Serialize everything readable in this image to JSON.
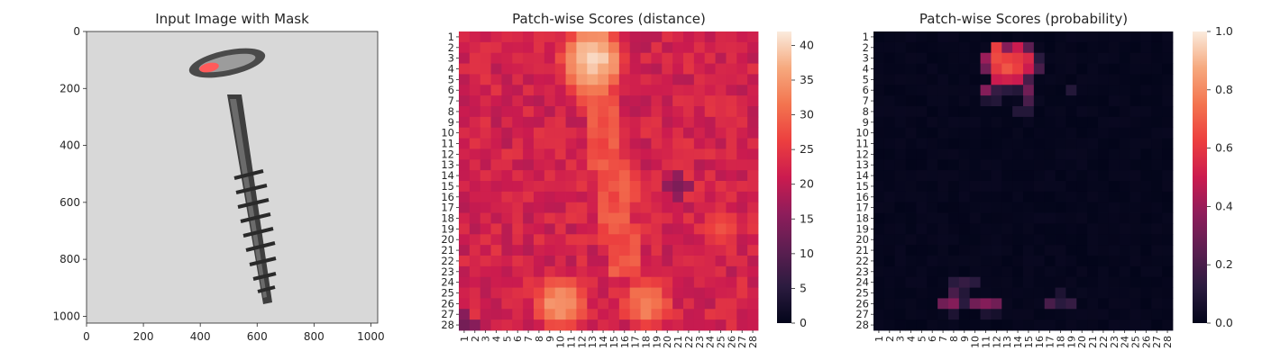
{
  "chart_data": [
    {
      "type": "image",
      "title": "Input Image with Mask",
      "xlim": [
        0,
        1024
      ],
      "ylim": [
        1024,
        0
      ],
      "xticks": [
        0,
        200,
        400,
        600,
        800,
        1000
      ],
      "yticks": [
        0,
        200,
        400,
        600,
        800,
        1000
      ],
      "xtick_labels": [
        "0",
        "200",
        "400",
        "600",
        "800",
        "1000"
      ],
      "ytick_labels": [
        "0",
        "200",
        "400",
        "600",
        "800",
        "1000"
      ],
      "image_description": "grayscale photo of a screw, head at top near x≈470,y≈100, tip at bottom near x≈650,y≈950",
      "mask_color": "#ff5a5a"
    },
    {
      "type": "heatmap",
      "title": "Patch-wise Scores (distance)",
      "rows": 28,
      "cols": 28,
      "xtick_labels": [
        "1",
        "2",
        "3",
        "4",
        "5",
        "6",
        "7",
        "8",
        "9",
        "10",
        "11",
        "12",
        "13",
        "14",
        "15",
        "16",
        "17",
        "18",
        "19",
        "20",
        "21",
        "22",
        "23",
        "24",
        "25",
        "26",
        "27",
        "28"
      ],
      "ytick_labels": [
        "1",
        "2",
        "3",
        "4",
        "5",
        "6",
        "7",
        "8",
        "9",
        "10",
        "11",
        "12",
        "13",
        "14",
        "15",
        "16",
        "17",
        "18",
        "19",
        "20",
        "21",
        "22",
        "23",
        "24",
        "25",
        "26",
        "27",
        "28"
      ],
      "vmin": 0,
      "vmax": 42,
      "colorbar_ticks": [
        0,
        5,
        10,
        15,
        20,
        25,
        30,
        35,
        40
      ],
      "colormap": "rocket",
      "base_value": 22,
      "hotspots": [
        {
          "row": 3,
          "col": 13,
          "value": 41
        },
        {
          "row": 4,
          "col": 13,
          "value": 39
        },
        {
          "row": 26,
          "col": 10,
          "value": 35
        },
        {
          "row": 26,
          "col": 18,
          "value": 33
        },
        {
          "row": 15,
          "col": 16,
          "value": 30
        },
        {
          "row": 19,
          "col": 25,
          "value": 28
        }
      ],
      "coldspots": [
        {
          "row": 15,
          "col": 21,
          "value": 14
        },
        {
          "row": 28,
          "col": 1,
          "value": 13
        }
      ]
    },
    {
      "type": "heatmap",
      "title": "Patch-wise Scores (probability)",
      "rows": 28,
      "cols": 28,
      "xtick_labels": [
        "1",
        "2",
        "3",
        "4",
        "5",
        "6",
        "7",
        "8",
        "9",
        "10",
        "11",
        "12",
        "13",
        "14",
        "15",
        "16",
        "17",
        "18",
        "19",
        "20",
        "21",
        "22",
        "23",
        "24",
        "25",
        "26",
        "27",
        "28"
      ],
      "ytick_labels": [
        "1",
        "2",
        "3",
        "4",
        "5",
        "6",
        "7",
        "8",
        "9",
        "10",
        "11",
        "12",
        "13",
        "14",
        "15",
        "16",
        "17",
        "18",
        "19",
        "20",
        "21",
        "22",
        "23",
        "24",
        "25",
        "26",
        "27",
        "28"
      ],
      "vmin": 0,
      "vmax": 1,
      "colorbar_ticks": [
        0.0,
        0.2,
        0.4,
        0.6,
        0.8,
        1.0
      ],
      "colorbar_tick_labels": [
        "0.0",
        "0.2",
        "0.4",
        "0.6",
        "0.8",
        "1.0"
      ],
      "colormap": "rocket",
      "base_value": 0.02,
      "cells": [
        {
          "row": 2,
          "col": 12,
          "value": 0.62
        },
        {
          "row": 2,
          "col": 13,
          "value": 0.35
        },
        {
          "row": 2,
          "col": 14,
          "value": 0.5
        },
        {
          "row": 2,
          "col": 15,
          "value": 0.25
        },
        {
          "row": 3,
          "col": 11,
          "value": 0.4
        },
        {
          "row": 3,
          "col": 12,
          "value": 0.65
        },
        {
          "row": 3,
          "col": 13,
          "value": 0.62
        },
        {
          "row": 3,
          "col": 14,
          "value": 0.6
        },
        {
          "row": 3,
          "col": 15,
          "value": 0.55
        },
        {
          "row": 3,
          "col": 16,
          "value": 0.12
        },
        {
          "row": 4,
          "col": 11,
          "value": 0.3
        },
        {
          "row": 4,
          "col": 12,
          "value": 0.6
        },
        {
          "row": 4,
          "col": 13,
          "value": 0.68
        },
        {
          "row": 4,
          "col": 14,
          "value": 0.62
        },
        {
          "row": 4,
          "col": 15,
          "value": 0.5
        },
        {
          "row": 4,
          "col": 16,
          "value": 0.2
        },
        {
          "row": 5,
          "col": 12,
          "value": 0.5
        },
        {
          "row": 5,
          "col": 13,
          "value": 0.52
        },
        {
          "row": 5,
          "col": 14,
          "value": 0.5
        },
        {
          "row": 5,
          "col": 15,
          "value": 0.2
        },
        {
          "row": 6,
          "col": 11,
          "value": 0.35
        },
        {
          "row": 6,
          "col": 12,
          "value": 0.15
        },
        {
          "row": 6,
          "col": 13,
          "value": 0.12
        },
        {
          "row": 6,
          "col": 14,
          "value": 0.1
        },
        {
          "row": 6,
          "col": 15,
          "value": 0.3
        },
        {
          "row": 6,
          "col": 19,
          "value": 0.1
        },
        {
          "row": 7,
          "col": 11,
          "value": 0.08
        },
        {
          "row": 7,
          "col": 12,
          "value": 0.1
        },
        {
          "row": 7,
          "col": 15,
          "value": 0.2
        },
        {
          "row": 8,
          "col": 14,
          "value": 0.1
        },
        {
          "row": 8,
          "col": 15,
          "value": 0.1
        },
        {
          "row": 24,
          "col": 8,
          "value": 0.12
        },
        {
          "row": 24,
          "col": 9,
          "value": 0.15
        },
        {
          "row": 24,
          "col": 10,
          "value": 0.12
        },
        {
          "row": 25,
          "col": 8,
          "value": 0.2
        },
        {
          "row": 25,
          "col": 9,
          "value": 0.1
        },
        {
          "row": 26,
          "col": 7,
          "value": 0.3
        },
        {
          "row": 26,
          "col": 8,
          "value": 0.35
        },
        {
          "row": 26,
          "col": 9,
          "value": 0.12
        },
        {
          "row": 26,
          "col": 10,
          "value": 0.3
        },
        {
          "row": 26,
          "col": 11,
          "value": 0.35
        },
        {
          "row": 26,
          "col": 12,
          "value": 0.3
        },
        {
          "row": 26,
          "col": 17,
          "value": 0.2
        },
        {
          "row": 26,
          "col": 18,
          "value": 0.12
        },
        {
          "row": 26,
          "col": 19,
          "value": 0.15
        },
        {
          "row": 25,
          "col": 18,
          "value": 0.08
        },
        {
          "row": 27,
          "col": 8,
          "value": 0.08
        },
        {
          "row": 27,
          "col": 11,
          "value": 0.08
        },
        {
          "row": 27,
          "col": 12,
          "value": 0.06
        }
      ]
    }
  ]
}
